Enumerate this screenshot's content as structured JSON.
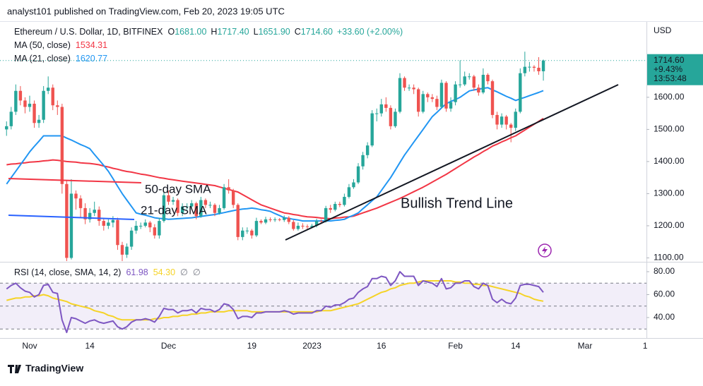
{
  "chart_data": {
    "type": "candlestick",
    "header": "analyst101 published on TradingView.com, Feb 20, 2023 19:05 UTC",
    "footer": "TradingView",
    "y_axis_label": "USD",
    "up_color": "#26a69a",
    "down_color": "#ef5350",
    "legend": {
      "symbol": "Ethereum / U.S. Dollar, 1D, BITFINEX",
      "ohlc": [
        {
          "label": "O",
          "value": "1681.00"
        },
        {
          "label": "H",
          "value": "1717.40"
        },
        {
          "label": "L",
          "value": "1651.90"
        },
        {
          "label": "C",
          "value": "1714.60"
        }
      ],
      "change": "+33.60 (+2.00%)"
    },
    "last_price": {
      "price": "1714.60",
      "change": "+9.43%",
      "countdown": "13:53:48"
    },
    "categories": [
      null,
      null,
      null,
      null,
      null,
      "Nov",
      null,
      null,
      null,
      null,
      null,
      null,
      null,
      null,
      null,
      null,
      null,
      null,
      "14",
      null,
      null,
      null,
      null,
      null,
      null,
      null,
      null,
      null,
      null,
      null,
      null,
      null,
      null,
      null,
      null,
      "Dec",
      null,
      null,
      null,
      null,
      null,
      null,
      null,
      null,
      null,
      null,
      null,
      null,
      null,
      null,
      null,
      null,
      null,
      "19",
      null,
      null,
      null,
      null,
      null,
      null,
      null,
      null,
      null,
      null,
      null,
      null,
      "2023",
      null,
      null,
      null,
      null,
      null,
      null,
      null,
      null,
      null,
      null,
      null,
      null,
      null,
      null,
      "16",
      null,
      null,
      null,
      null,
      null,
      null,
      null,
      null,
      null,
      null,
      null,
      null,
      null,
      null,
      null,
      "Feb",
      null,
      null,
      null,
      null,
      null,
      null,
      null,
      null,
      null,
      null,
      null,
      null,
      "14",
      null,
      null,
      null,
      null,
      null,
      null
    ],
    "future_ticks": [
      "Mar",
      "1"
    ],
    "open": [
      1500,
      1510,
      1555,
      1620,
      1590,
      1570,
      1580,
      1520,
      1530,
      1620,
      1630,
      1575,
      1570,
      1330,
      1100,
      1300,
      1285,
      1255,
      1220,
      1240,
      1250,
      1215,
      1200,
      1210,
      1218,
      1140,
      1110,
      1135,
      1185,
      1200,
      1200,
      1210,
      1195,
      1170,
      1215,
      1295,
      1275,
      1280,
      1240,
      1260,
      1260,
      1270,
      1230,
      1280,
      1265,
      1265,
      1240,
      1255,
      1320,
      1310,
      1265,
      1165,
      1185,
      1185,
      1170,
      1215,
      1210,
      1220,
      1218,
      1220,
      1218,
      1225,
      1212,
      1190,
      1200,
      1198,
      1196,
      1200,
      1215,
      1213,
      1255,
      1250,
      1268,
      1265,
      1290,
      1320,
      1335,
      1385,
      1420,
      1450,
      1550,
      1550,
      1578,
      1567,
      1510,
      1555,
      1660,
      1630,
      1630,
      1625,
      1555,
      1610,
      1600,
      1595,
      1570,
      1645,
      1565,
      1585,
      1640,
      1640,
      1665,
      1665,
      1630,
      1615,
      1670,
      1650,
      1545,
      1515,
      1540,
      1515,
      1505,
      1555,
      1675,
      1695,
      1695,
      1692,
      1681
    ],
    "high": [
      1525,
      1570,
      1640,
      1635,
      1600,
      1605,
      1590,
      1545,
      1635,
      1665,
      1640,
      1590,
      1580,
      1340,
      1345,
      1310,
      1295,
      1270,
      1255,
      1275,
      1260,
      1225,
      1220,
      1230,
      1225,
      1150,
      1145,
      1195,
      1215,
      1210,
      1220,
      1215,
      1205,
      1225,
      1305,
      1310,
      1290,
      1285,
      1270,
      1270,
      1280,
      1275,
      1290,
      1285,
      1275,
      1270,
      1265,
      1330,
      1345,
      1315,
      1270,
      1195,
      1195,
      1190,
      1225,
      1220,
      1228,
      1226,
      1226,
      1224,
      1232,
      1230,
      1218,
      1210,
      1208,
      1204,
      1206,
      1222,
      1220,
      1262,
      1265,
      1275,
      1275,
      1300,
      1330,
      1345,
      1395,
      1430,
      1460,
      1560,
      1565,
      1595,
      1600,
      1575,
      1565,
      1675,
      1665,
      1640,
      1640,
      1630,
      1620,
      1615,
      1610,
      1605,
      1655,
      1650,
      1600,
      1650,
      1715,
      1680,
      1675,
      1670,
      1640,
      1690,
      1675,
      1655,
      1555,
      1550,
      1545,
      1520,
      1565,
      1690,
      1742,
      1710,
      1700,
      1725,
      1717.4
    ],
    "low": [
      1480,
      1500,
      1545,
      1575,
      1550,
      1555,
      1505,
      1505,
      1520,
      1610,
      1560,
      1545,
      1300,
      1075,
      1095,
      1250,
      1225,
      1205,
      1210,
      1230,
      1200,
      1185,
      1190,
      1195,
      1125,
      1085,
      1100,
      1125,
      1175,
      1190,
      1195,
      1180,
      1160,
      1160,
      1210,
      1265,
      1265,
      1230,
      1230,
      1250,
      1250,
      1220,
      1225,
      1255,
      1255,
      1230,
      1235,
      1250,
      1300,
      1255,
      1155,
      1155,
      1175,
      1160,
      1165,
      1205,
      1205,
      1212,
      1212,
      1214,
      1212,
      1205,
      1185,
      1185,
      1190,
      1190,
      1192,
      1195,
      1208,
      1210,
      1240,
      1245,
      1258,
      1260,
      1285,
      1315,
      1330,
      1375,
      1410,
      1445,
      1525,
      1540,
      1555,
      1500,
      1505,
      1550,
      1620,
      1620,
      1610,
      1540,
      1550,
      1585,
      1585,
      1560,
      1565,
      1555,
      1555,
      1575,
      1630,
      1635,
      1655,
      1620,
      1605,
      1610,
      1640,
      1535,
      1500,
      1505,
      1500,
      1460,
      1495,
      1550,
      1665,
      1680,
      1680,
      1670,
      1651.9
    ],
    "close": [
      1510,
      1555,
      1620,
      1590,
      1570,
      1580,
      1520,
      1530,
      1620,
      1630,
      1575,
      1570,
      1330,
      1100,
      1300,
      1285,
      1255,
      1220,
      1240,
      1250,
      1215,
      1200,
      1210,
      1218,
      1140,
      1110,
      1135,
      1185,
      1200,
      1200,
      1210,
      1195,
      1170,
      1215,
      1295,
      1275,
      1280,
      1240,
      1260,
      1260,
      1270,
      1230,
      1280,
      1265,
      1265,
      1240,
      1255,
      1320,
      1310,
      1265,
      1165,
      1185,
      1185,
      1170,
      1215,
      1210,
      1220,
      1218,
      1220,
      1218,
      1225,
      1212,
      1190,
      1200,
      1198,
      1196,
      1200,
      1215,
      1213,
      1255,
      1250,
      1268,
      1265,
      1290,
      1320,
      1335,
      1385,
      1420,
      1450,
      1550,
      1550,
      1578,
      1567,
      1510,
      1555,
      1660,
      1630,
      1630,
      1625,
      1555,
      1610,
      1600,
      1595,
      1570,
      1645,
      1565,
      1585,
      1640,
      1640,
      1665,
      1665,
      1630,
      1615,
      1670,
      1650,
      1545,
      1515,
      1540,
      1515,
      1505,
      1555,
      1675,
      1695,
      1695,
      1692,
      1681,
      1714.6
    ],
    "series": [
      {
        "name": "MA (50, close)",
        "value_label": "1534.31",
        "color": "#f23645",
        "values": [
          1390,
          1392,
          1393,
          1395,
          1396,
          1398,
          1399,
          1400,
          1402,
          1403,
          1405,
          1404,
          1402,
          1400,
          1399,
          1398,
          1396,
          1395,
          1394,
          1392,
          1390,
          1386,
          1383,
          1379,
          1376,
          1372,
          1369,
          1367,
          1364,
          1361,
          1359,
          1356,
          1353,
          1350,
          1348,
          1345,
          1343,
          1341,
          1339,
          1337,
          1335,
          1333,
          1331,
          1329,
          1327,
          1325,
          1321,
          1317,
          1313,
          1309,
          1305,
          1297,
          1289,
          1281,
          1273,
          1265,
          1260,
          1255,
          1250,
          1245,
          1240,
          1238,
          1235,
          1233,
          1230,
          1228,
          1227,
          1226,
          1224,
          1223,
          1222,
          1224,
          1225,
          1227,
          1228,
          1230,
          1235,
          1240,
          1245,
          1250,
          1255,
          1261,
          1267,
          1273,
          1279,
          1285,
          1292,
          1299,
          1306,
          1313,
          1320,
          1328,
          1336,
          1344,
          1352,
          1360,
          1369,
          1378,
          1387,
          1396,
          1405,
          1414,
          1422,
          1431,
          1439,
          1448,
          1454,
          1461,
          1467,
          1474,
          1480,
          1489,
          1498,
          1507,
          1516,
          1525,
          1534.31
        ]
      },
      {
        "name": "MA (21, close)",
        "value_label": "1620.77",
        "color": "#2196f3",
        "values": [
          1330,
          1350,
          1370,
          1390,
          1410,
          1430,
          1447,
          1463,
          1480,
          1480,
          1480,
          1480,
          1480,
          1473,
          1467,
          1460,
          1453,
          1447,
          1440,
          1422,
          1405,
          1388,
          1370,
          1347,
          1323,
          1300,
          1280,
          1260,
          1240,
          1236,
          1233,
          1229,
          1225,
          1223,
          1222,
          1220,
          1221,
          1222,
          1223,
          1224,
          1225,
          1227,
          1229,
          1231,
          1233,
          1235,
          1238,
          1241,
          1244,
          1247,
          1250,
          1252,
          1253,
          1255,
          1253,
          1250,
          1248,
          1245,
          1238,
          1232,
          1225,
          1223,
          1220,
          1218,
          1215,
          1215,
          1215,
          1215,
          1215,
          1215,
          1215,
          1217,
          1218,
          1220,
          1227,
          1233,
          1240,
          1253,
          1265,
          1278,
          1290,
          1310,
          1330,
          1350,
          1373,
          1397,
          1420,
          1440,
          1460,
          1480,
          1500,
          1520,
          1540,
          1553,
          1567,
          1580,
          1587,
          1593,
          1600,
          1610,
          1620,
          1623,
          1625,
          1628,
          1630,
          1623,
          1617,
          1610,
          1603,
          1597,
          1590,
          1595,
          1600,
          1605,
          1610,
          1615,
          1620.77
        ]
      }
    ],
    "ylim": [
      1090,
      1837
    ],
    "yticks": [
      {
        "value": 1100,
        "label": "1100.00"
      },
      {
        "value": 1200,
        "label": "1200.00"
      },
      {
        "value": 1300,
        "label": "1300.00"
      },
      {
        "value": 1400,
        "label": "1400.00"
      },
      {
        "value": 1500,
        "label": "1500.00"
      },
      {
        "value": 1600,
        "label": "1600.00"
      }
    ],
    "annotations": [
      {
        "text": "50-day SMA",
        "color": "#f23645"
      },
      {
        "text": "21-day SMA",
        "color": "#2962ff"
      },
      {
        "text": "Bullish Trend Line",
        "color": "#1f5f5a"
      }
    ],
    "rsi": {
      "type": "line",
      "legend": {
        "label": "RSI (14, close, SMA, 14, 2)",
        "values": [
          "61.98",
          "54.30"
        ],
        "extras": [
          "∅",
          "∅"
        ]
      },
      "series": [
        {
          "name": "RSI",
          "color": "#7e57c2",
          "values": [
            65,
            68,
            70,
            66,
            63,
            62,
            58,
            60,
            68,
            69,
            62,
            61,
            38,
            27,
            40,
            39,
            37,
            35,
            37,
            38,
            36,
            35,
            36,
            37,
            32,
            30,
            32,
            36,
            38,
            38,
            39,
            38,
            36,
            41,
            48,
            47,
            47,
            44,
            46,
            46,
            47,
            44,
            48,
            47,
            47,
            45,
            47,
            52,
            51,
            47,
            39,
            41,
            41,
            40,
            44,
            44,
            45,
            45,
            45,
            45,
            46,
            45,
            43,
            44,
            44,
            44,
            44,
            46,
            46,
            50,
            49,
            51,
            51,
            53,
            56,
            57,
            62,
            65,
            67,
            74,
            74,
            76,
            75,
            68,
            72,
            80,
            76,
            76,
            76,
            68,
            72,
            71,
            70,
            67,
            74,
            65,
            66,
            70,
            70,
            72,
            72,
            67,
            65,
            70,
            68,
            56,
            53,
            56,
            53,
            52,
            57,
            68,
            69,
            69,
            68,
            67,
            61.98
          ]
        },
        {
          "name": "SMA",
          "color": "#f5d327",
          "values": [
            55,
            56,
            57,
            57,
            58,
            58,
            59,
            59,
            60,
            59,
            57,
            56,
            55,
            54,
            52,
            51,
            50,
            49,
            48,
            46,
            45,
            44,
            42,
            41,
            39,
            38,
            38,
            38,
            38,
            38,
            38,
            38,
            39,
            39,
            40,
            40,
            41,
            41,
            42,
            42,
            43,
            43,
            44,
            44,
            45,
            45,
            45,
            45,
            46,
            46,
            46,
            46,
            46,
            45,
            45,
            45,
            45,
            45,
            45,
            45,
            45,
            45,
            45,
            45,
            45,
            45,
            45,
            45,
            46,
            46,
            46,
            47,
            48,
            49,
            50,
            51,
            52,
            54,
            56,
            58,
            60,
            62,
            63,
            65,
            66,
            68,
            69,
            70,
            70,
            71,
            72,
            72,
            72,
            72,
            72,
            72,
            72,
            71,
            71,
            70,
            70,
            69,
            69,
            68,
            68,
            67,
            66,
            65,
            64,
            63,
            62,
            61,
            59,
            58,
            56,
            55,
            54.3
          ]
        }
      ],
      "levels": [
        30,
        50,
        70
      ],
      "ylim": [
        24,
        88
      ],
      "yticks": [
        {
          "value": 40,
          "label": "40.00"
        },
        {
          "value": 60,
          "label": "60.00"
        },
        {
          "value": 80,
          "label": "80.00"
        }
      ]
    }
  }
}
